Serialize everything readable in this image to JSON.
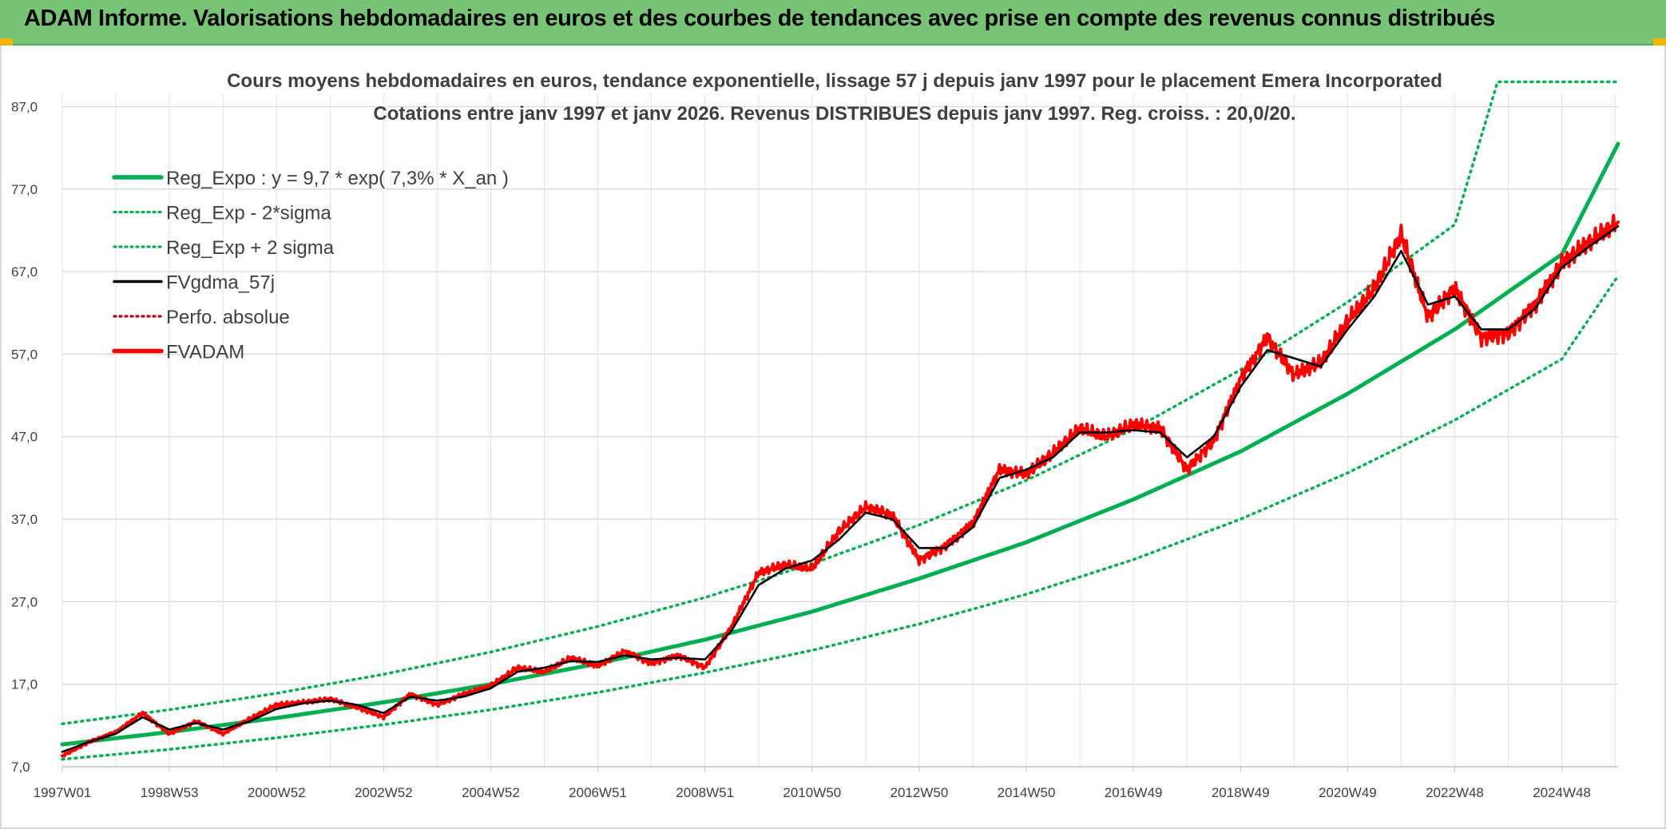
{
  "banner": {
    "title": "ADAM Informe. Valorisations hebdomadaires en euros et des courbes de tendances avec prise en compte des revenus connus distribués"
  },
  "colors": {
    "banner_bg": "#77c474",
    "reg_expo": "#00b050",
    "fvgdma": "#000000",
    "fvadam": "#ff0000",
    "perfo": "#c00000"
  },
  "chart_data": {
    "type": "line",
    "title_line1": "Cours moyens hebdomadaires en euros, tendance exponentielle, lissage 57 j depuis janv 1997 pour le placement Emera Incorporated",
    "title_line2": "Cotations entre janv 1997 et janv 2026. Revenus DISTRIBUES depuis janv 1997. Reg. croiss. : 20,0/20.",
    "x_ticks": [
      "1997W01",
      "1998W53",
      "2000W52",
      "2002W52",
      "2004W52",
      "2006W51",
      "2008W51",
      "2010W50",
      "2012W50",
      "2014W50",
      "2016W49",
      "2018W49",
      "2020W49",
      "2022W48",
      "2024W48"
    ],
    "x_tick_years": [
      1997.0,
      1999.0,
      2001.0,
      2003.0,
      2005.0,
      2007.0,
      2009.0,
      2011.0,
      2013.0,
      2015.0,
      2017.0,
      2019.0,
      2021.0,
      2023.0,
      2025.0
    ],
    "y_ticks": [
      "7,0",
      "17,0",
      "27,0",
      "37,0",
      "47,0",
      "57,0",
      "67,0",
      "77,0",
      "87,0"
    ],
    "y_tick_values": [
      7,
      17,
      27,
      37,
      47,
      57,
      67,
      77,
      87
    ],
    "xlim": [
      1997.0,
      2026.05
    ],
    "ylim": [
      7,
      88.5
    ],
    "grid": true,
    "legend_position": "top-left",
    "legend": [
      {
        "label": "Reg_Expo : y = 9,7 * exp( 7,3% *  X_an )",
        "style": "solid-thick",
        "color": "#00b050"
      },
      {
        "label": "Reg_Exp - 2*sigma",
        "style": "dotted",
        "color": "#00b050"
      },
      {
        "label": "Reg_Exp + 2 sigma",
        "style": "dotted",
        "color": "#00b050"
      },
      {
        "label": "FVgdma_57j",
        "style": "solid",
        "color": "#000000"
      },
      {
        "label": "Perfo. absolue",
        "style": "dotted",
        "color": "#c00000"
      },
      {
        "label": "FVADAM",
        "style": "solid-thick",
        "color": "#ff0000"
      }
    ],
    "series": [
      {
        "name": "Reg_Expo : y = 9,7 * exp( 7,3% *  X_an )",
        "x": [
          1997.0,
          1999.0,
          2001.0,
          2003.0,
          2005.0,
          2007.0,
          2009.0,
          2011.0,
          2013.0,
          2015.0,
          2017.0,
          2019.0,
          2021.0,
          2023.0,
          2025.0,
          2026.05
        ],
        "y": [
          9.7,
          11.2,
          12.9,
          14.8,
          17.0,
          19.5,
          22.4,
          25.8,
          29.8,
          34.2,
          39.4,
          45.2,
          52.2,
          60.0,
          69.1,
          82.5
        ]
      },
      {
        "name": "Reg_Exp - 2*sigma",
        "x": [
          1997.0,
          1999.0,
          2001.0,
          2003.0,
          2005.0,
          2007.0,
          2009.0,
          2011.0,
          2013.0,
          2015.0,
          2017.0,
          2019.0,
          2021.0,
          2023.0,
          2025.0,
          2026.05
        ],
        "y": [
          7.9,
          9.1,
          10.5,
          12.1,
          13.9,
          16.0,
          18.4,
          21.1,
          24.3,
          27.9,
          32.1,
          37.0,
          42.6,
          49.0,
          56.4,
          66.5
        ]
      },
      {
        "name": "Reg_Exp + 2 sigma",
        "x": [
          1997.0,
          1999.0,
          2001.0,
          2003.0,
          2005.0,
          2007.0,
          2009.0,
          2011.0,
          2013.0,
          2015.0,
          2017.0,
          2019.0,
          2021.0,
          2023.0,
          2023.8,
          2026.05
        ],
        "y": [
          12.2,
          13.9,
          15.9,
          18.2,
          20.9,
          24.0,
          27.5,
          31.6,
          36.3,
          41.7,
          47.9,
          55.1,
          63.3,
          72.7,
          90.0,
          90.0
        ]
      },
      {
        "name": "FVgdma_57j",
        "x": [
          1997.0,
          1997.5,
          1998.0,
          1998.5,
          1999.0,
          1999.5,
          2000.0,
          2000.5,
          2001.0,
          2001.5,
          2002.0,
          2002.5,
          2003.0,
          2003.5,
          2004.0,
          2004.5,
          2005.0,
          2005.5,
          2006.0,
          2006.5,
          2007.0,
          2007.5,
          2008.0,
          2008.5,
          2009.0,
          2009.5,
          2010.0,
          2010.5,
          2011.0,
          2011.5,
          2012.0,
          2012.5,
          2013.0,
          2013.5,
          2014.0,
          2014.5,
          2015.0,
          2015.5,
          2016.0,
          2016.5,
          2017.0,
          2017.5,
          2018.0,
          2018.5,
          2019.0,
          2019.5,
          2020.0,
          2020.5,
          2021.0,
          2021.5,
          2022.0,
          2022.5,
          2023.0,
          2023.5,
          2024.0,
          2024.5,
          2025.0,
          2025.5,
          2026.05
        ],
        "y": [
          8.8,
          10.0,
          11.0,
          13.0,
          11.5,
          12.3,
          11.5,
          12.5,
          14.0,
          14.7,
          15.0,
          14.5,
          13.5,
          15.5,
          15.0,
          15.5,
          16.5,
          18.5,
          19.0,
          19.8,
          19.7,
          20.5,
          20.0,
          20.2,
          20.0,
          23.5,
          29.0,
          31.0,
          32.0,
          34.5,
          37.8,
          37.0,
          33.5,
          33.5,
          36.0,
          42.0,
          43.0,
          44.5,
          47.5,
          47.5,
          47.8,
          47.5,
          44.5,
          47.0,
          53.0,
          57.5,
          56.5,
          55.5,
          60.0,
          64.0,
          69.5,
          63.0,
          64.0,
          60.0,
          60.0,
          62.5,
          67.5,
          70.0,
          72.5
        ]
      },
      {
        "name": "FVADAM",
        "x": [
          1997.0,
          1997.5,
          1998.0,
          1998.5,
          1999.0,
          1999.5,
          2000.0,
          2000.5,
          2001.0,
          2001.5,
          2002.0,
          2002.5,
          2003.0,
          2003.5,
          2004.0,
          2004.5,
          2005.0,
          2005.5,
          2006.0,
          2006.5,
          2007.0,
          2007.5,
          2008.0,
          2008.5,
          2009.0,
          2009.5,
          2010.0,
          2010.5,
          2011.0,
          2011.5,
          2012.0,
          2012.5,
          2013.0,
          2013.5,
          2014.0,
          2014.5,
          2015.0,
          2015.5,
          2016.0,
          2016.5,
          2017.0,
          2017.5,
          2018.0,
          2018.5,
          2019.0,
          2019.5,
          2020.0,
          2020.5,
          2021.0,
          2021.5,
          2022.0,
          2022.5,
          2023.0,
          2023.5,
          2024.0,
          2024.5,
          2025.0,
          2025.5,
          2026.05
        ],
        "y": [
          8.3,
          10.0,
          11.2,
          13.5,
          11.0,
          12.5,
          11.0,
          12.8,
          14.5,
          14.8,
          15.2,
          14.2,
          13.0,
          15.8,
          14.5,
          15.8,
          16.8,
          19.0,
          18.5,
          20.2,
          19.2,
          21.0,
          19.5,
          20.5,
          19.0,
          24.0,
          30.5,
          31.5,
          31.0,
          35.5,
          38.5,
          37.5,
          32.0,
          33.8,
          36.5,
          43.0,
          42.5,
          45.0,
          48.0,
          47.0,
          48.5,
          48.0,
          43.0,
          46.5,
          54.0,
          59.0,
          54.5,
          56.0,
          61.0,
          65.0,
          71.5,
          61.5,
          65.0,
          59.0,
          59.5,
          63.0,
          68.0,
          70.5,
          73.0
        ]
      }
    ]
  }
}
